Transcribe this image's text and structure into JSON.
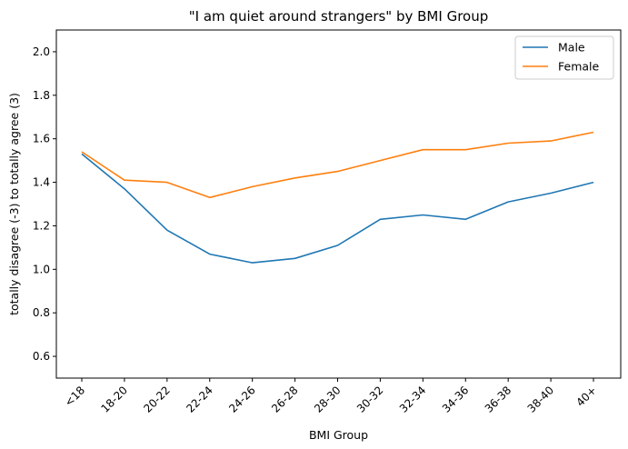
{
  "chart_data": {
    "type": "line",
    "title": "\"I am quiet around strangers\" by BMI Group",
    "xlabel": "BMI Group",
    "ylabel": "totally disagree (-3) to totally agree (3)",
    "categories": [
      "<18",
      "18-20",
      "20-22",
      "22-24",
      "24-26",
      "26-28",
      "28-30",
      "30-32",
      "32-34",
      "34-36",
      "36-38",
      "38-40",
      "40+"
    ],
    "ylim": [
      0.5,
      2.1
    ],
    "yticks": [
      "0.6",
      "0.8",
      "1.0",
      "1.2",
      "1.4",
      "1.6",
      "1.8",
      "2.0"
    ],
    "grid": false,
    "legend_position": "top-right",
    "series": [
      {
        "name": "Male",
        "color": "#1f77b4",
        "values": [
          1.53,
          1.37,
          1.18,
          1.07,
          1.03,
          1.05,
          1.11,
          1.23,
          1.25,
          1.23,
          1.31,
          1.35,
          1.4
        ]
      },
      {
        "name": "Female",
        "color": "#ff7f0e",
        "values": [
          1.54,
          1.41,
          1.4,
          1.33,
          1.38,
          1.42,
          1.45,
          1.5,
          1.55,
          1.55,
          1.58,
          1.59,
          1.63
        ]
      }
    ]
  }
}
